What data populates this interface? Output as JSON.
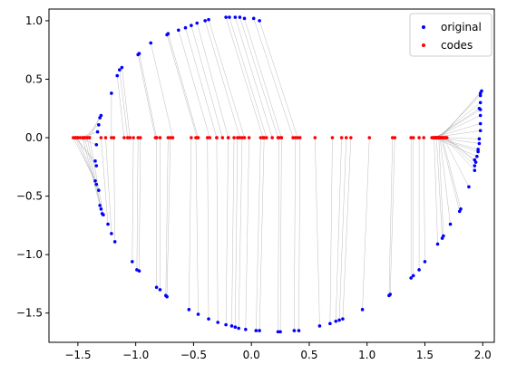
{
  "chart_data": {
    "type": "scatter",
    "title": "",
    "xlabel": "",
    "ylabel": "",
    "xlim": [
      -1.75,
      2.1
    ],
    "ylim": [
      -1.75,
      1.1
    ],
    "xticks": [
      -1.5,
      -1.0,
      -0.5,
      0.0,
      0.5,
      1.0,
      1.5,
      2.0
    ],
    "yticks": [
      1.0,
      0.5,
      0.0,
      -0.5,
      -1.0,
      -1.5
    ],
    "xtick_labels": [
      "−1.5",
      "−1.0",
      "−0.5",
      "0.0",
      "0.5",
      "1.0",
      "1.5",
      "2.0"
    ],
    "ytick_labels": [
      "1.0",
      "0.5",
      "0.0",
      "−0.5",
      "−1.0",
      "−1.5"
    ],
    "grid": false,
    "legend_position": "top-right",
    "connector_color": "#a0a0a0",
    "series": [
      {
        "name": "original",
        "color": "#0000ff",
        "points": [
          [
            -0.22,
            1.03
          ],
          [
            -0.19,
            1.03
          ],
          [
            -0.14,
            1.03
          ],
          [
            -0.1,
            1.03
          ],
          [
            -0.06,
            1.02
          ],
          [
            0.02,
            1.02
          ],
          [
            0.07,
            1.0
          ],
          [
            -0.37,
            1.01
          ],
          [
            -0.4,
            1.0
          ],
          [
            -0.47,
            0.98
          ],
          [
            -0.52,
            0.96
          ],
          [
            -0.57,
            0.94
          ],
          [
            -0.63,
            0.92
          ],
          [
            -0.72,
            0.89
          ],
          [
            -0.73,
            0.88
          ],
          [
            -0.87,
            0.81
          ],
          [
            -0.97,
            0.72
          ],
          [
            -0.98,
            0.71
          ],
          [
            -1.12,
            0.6
          ],
          [
            -1.14,
            0.58
          ],
          [
            -1.16,
            0.53
          ],
          [
            -1.21,
            0.38
          ],
          [
            -1.3,
            0.19
          ],
          [
            -1.31,
            0.17
          ],
          [
            -1.32,
            0.11
          ],
          [
            -1.33,
            0.05
          ],
          [
            -1.34,
            -0.06
          ],
          [
            -1.35,
            -0.2
          ],
          [
            -1.34,
            -0.24
          ],
          [
            -1.35,
            -0.37
          ],
          [
            -1.34,
            -0.4
          ],
          [
            -1.32,
            -0.45
          ],
          [
            -1.31,
            -0.58
          ],
          [
            -1.3,
            -0.61
          ],
          [
            -1.29,
            -0.65
          ],
          [
            -1.28,
            -0.66
          ],
          [
            -1.24,
            -0.74
          ],
          [
            -1.21,
            -0.82
          ],
          [
            -1.18,
            -0.89
          ],
          [
            -1.03,
            -1.06
          ],
          [
            -0.99,
            -1.13
          ],
          [
            -0.97,
            -1.14
          ],
          [
            -0.82,
            -1.28
          ],
          [
            -0.79,
            -1.3
          ],
          [
            -0.74,
            -1.35
          ],
          [
            -0.73,
            -1.36
          ],
          [
            -0.54,
            -1.47
          ],
          [
            -0.46,
            -1.51
          ],
          [
            -0.37,
            -1.55
          ],
          [
            -0.29,
            -1.58
          ],
          [
            -0.22,
            -1.6
          ],
          [
            -0.17,
            -1.61
          ],
          [
            -0.14,
            -1.62
          ],
          [
            -0.11,
            -1.63
          ],
          [
            -0.05,
            -1.64
          ],
          [
            0.04,
            -1.65
          ],
          [
            0.07,
            -1.65
          ],
          [
            0.23,
            -1.66
          ],
          [
            0.25,
            -1.66
          ],
          [
            0.37,
            -1.65
          ],
          [
            0.41,
            -1.65
          ],
          [
            0.59,
            -1.61
          ],
          [
            0.68,
            -1.59
          ],
          [
            0.73,
            -1.57
          ],
          [
            0.76,
            -1.56
          ],
          [
            0.79,
            -1.55
          ],
          [
            0.96,
            -1.47
          ],
          [
            1.19,
            -1.35
          ],
          [
            1.2,
            -1.34
          ],
          [
            1.38,
            -1.2
          ],
          [
            1.4,
            -1.18
          ],
          [
            1.45,
            -1.13
          ],
          [
            1.5,
            -1.06
          ],
          [
            1.61,
            -0.91
          ],
          [
            1.65,
            -0.86
          ],
          [
            1.66,
            -0.84
          ],
          [
            1.72,
            -0.74
          ],
          [
            1.8,
            -0.63
          ],
          [
            1.81,
            -0.61
          ],
          [
            1.88,
            -0.42
          ],
          [
            1.93,
            -0.28
          ],
          [
            1.93,
            -0.24
          ],
          [
            1.94,
            -0.21
          ],
          [
            1.93,
            -0.19
          ],
          [
            1.95,
            -0.16
          ],
          [
            1.96,
            -0.12
          ],
          [
            1.96,
            -0.1
          ],
          [
            1.97,
            -0.05
          ],
          [
            1.97,
            -0.01
          ],
          [
            1.98,
            0.06
          ],
          [
            1.98,
            0.12
          ],
          [
            1.98,
            0.19
          ],
          [
            1.98,
            0.24
          ],
          [
            1.97,
            0.25
          ],
          [
            1.98,
            0.3
          ],
          [
            1.98,
            0.36
          ],
          [
            1.98,
            0.38
          ],
          [
            1.99,
            0.4
          ]
        ]
      },
      {
        "name": "codes",
        "color": "#ff0000",
        "points": [
          [
            -0.22,
            0
          ],
          [
            -0.19,
            0
          ],
          [
            -0.14,
            0
          ],
          [
            -0.1,
            0
          ],
          [
            -0.06,
            0
          ],
          [
            0.02,
            0
          ],
          [
            0.07,
            0
          ],
          [
            -0.37,
            0
          ],
          [
            -0.4,
            0
          ],
          [
            -0.47,
            0
          ],
          [
            -0.52,
            0
          ],
          [
            -0.57,
            0
          ],
          [
            -0.63,
            0
          ],
          [
            -0.72,
            0
          ],
          [
            -0.73,
            0
          ],
          [
            -0.87,
            0
          ],
          [
            -0.97,
            0
          ],
          [
            -0.98,
            0
          ],
          [
            -1.12,
            0
          ],
          [
            -1.14,
            0
          ],
          [
            -1.16,
            0
          ],
          [
            -1.21,
            0
          ],
          [
            -1.3,
            0
          ],
          [
            -1.31,
            0
          ],
          [
            -1.32,
            0
          ],
          [
            -1.33,
            0
          ],
          [
            -1.34,
            0
          ],
          [
            -1.35,
            0
          ],
          [
            -1.34,
            0
          ],
          [
            -1.35,
            0
          ],
          [
            -1.34,
            0
          ],
          [
            -1.32,
            0
          ],
          [
            -1.31,
            0
          ],
          [
            -1.3,
            0
          ],
          [
            -1.29,
            0
          ],
          [
            -1.28,
            0
          ],
          [
            -1.24,
            0
          ],
          [
            -1.21,
            0
          ],
          [
            -1.18,
            0
          ],
          [
            -1.03,
            0
          ],
          [
            -0.99,
            0
          ],
          [
            -0.97,
            0
          ],
          [
            -0.82,
            0
          ],
          [
            -0.79,
            0
          ],
          [
            -0.74,
            0
          ],
          [
            -0.73,
            0
          ],
          [
            -0.54,
            0
          ],
          [
            -0.46,
            0
          ],
          [
            -0.37,
            0
          ],
          [
            -0.29,
            0
          ],
          [
            -0.22,
            0
          ],
          [
            -0.17,
            0
          ],
          [
            -0.14,
            0
          ],
          [
            -0.11,
            0
          ],
          [
            -0.05,
            0
          ],
          [
            0.04,
            0
          ],
          [
            0.07,
            0
          ],
          [
            0.23,
            0
          ],
          [
            0.25,
            0
          ],
          [
            0.37,
            0
          ],
          [
            0.41,
            0
          ],
          [
            0.59,
            0
          ],
          [
            0.68,
            0
          ],
          [
            0.73,
            0
          ],
          [
            0.76,
            0
          ],
          [
            0.79,
            0
          ],
          [
            0.96,
            0
          ],
          [
            1.19,
            0
          ],
          [
            1.2,
            0
          ],
          [
            1.38,
            0
          ],
          [
            1.4,
            0
          ],
          [
            1.45,
            0
          ],
          [
            1.5,
            0
          ],
          [
            1.61,
            0
          ],
          [
            1.65,
            0
          ],
          [
            1.66,
            0
          ],
          [
            1.72,
            0
          ],
          [
            1.8,
            0
          ],
          [
            1.81,
            0
          ],
          [
            1.88,
            0
          ],
          [
            1.93,
            0
          ],
          [
            1.93,
            0
          ],
          [
            1.94,
            0
          ],
          [
            1.93,
            0
          ],
          [
            1.95,
            0
          ],
          [
            1.96,
            0
          ],
          [
            1.96,
            0
          ],
          [
            1.97,
            0
          ],
          [
            1.97,
            0
          ],
          [
            1.98,
            0
          ],
          [
            1.98,
            0
          ],
          [
            1.98,
            0
          ],
          [
            1.98,
            0
          ],
          [
            1.97,
            0
          ],
          [
            1.98,
            0
          ],
          [
            1.98,
            0
          ],
          [
            1.98,
            0
          ],
          [
            1.99,
            0
          ]
        ]
      }
    ],
    "codes_x_override": [
      0.1,
      0.13,
      0.18,
      0.23,
      0.26,
      0.36,
      0.4,
      -0.06,
      -0.1,
      -0.2,
      -0.25,
      -0.3,
      -0.36,
      -0.46,
      -0.47,
      -0.68,
      -0.82,
      -0.83,
      -1.05,
      -1.07,
      -1.1,
      -1.21,
      -1.4,
      -1.42,
      -1.45,
      -1.48,
      -1.5,
      -1.52,
      -1.52,
      -1.54,
      -1.52,
      -1.5,
      -1.46,
      -1.44,
      -1.42,
      -1.4,
      -1.3,
      -1.26,
      -1.19,
      -1.02,
      -0.98,
      -0.96,
      -0.82,
      -0.79,
      -0.72,
      -0.7,
      -0.52,
      -0.48,
      -0.38,
      -0.3,
      -0.2,
      -0.15,
      -0.12,
      -0.08,
      -0.02,
      0.08,
      0.11,
      0.24,
      0.26,
      0.38,
      0.42,
      0.55,
      0.7,
      0.78,
      0.82,
      0.86,
      1.02,
      1.22,
      1.24,
      1.38,
      1.4,
      1.45,
      1.49,
      1.58,
      1.6,
      1.62,
      1.63,
      1.64,
      1.65,
      1.66,
      1.67,
      1.68,
      1.68,
      1.69,
      1.58,
      1.59,
      1.6,
      1.61,
      1.62,
      1.56,
      1.57,
      1.58,
      1.59,
      1.6,
      1.61,
      1.62,
      1.63,
      1.64
    ]
  }
}
